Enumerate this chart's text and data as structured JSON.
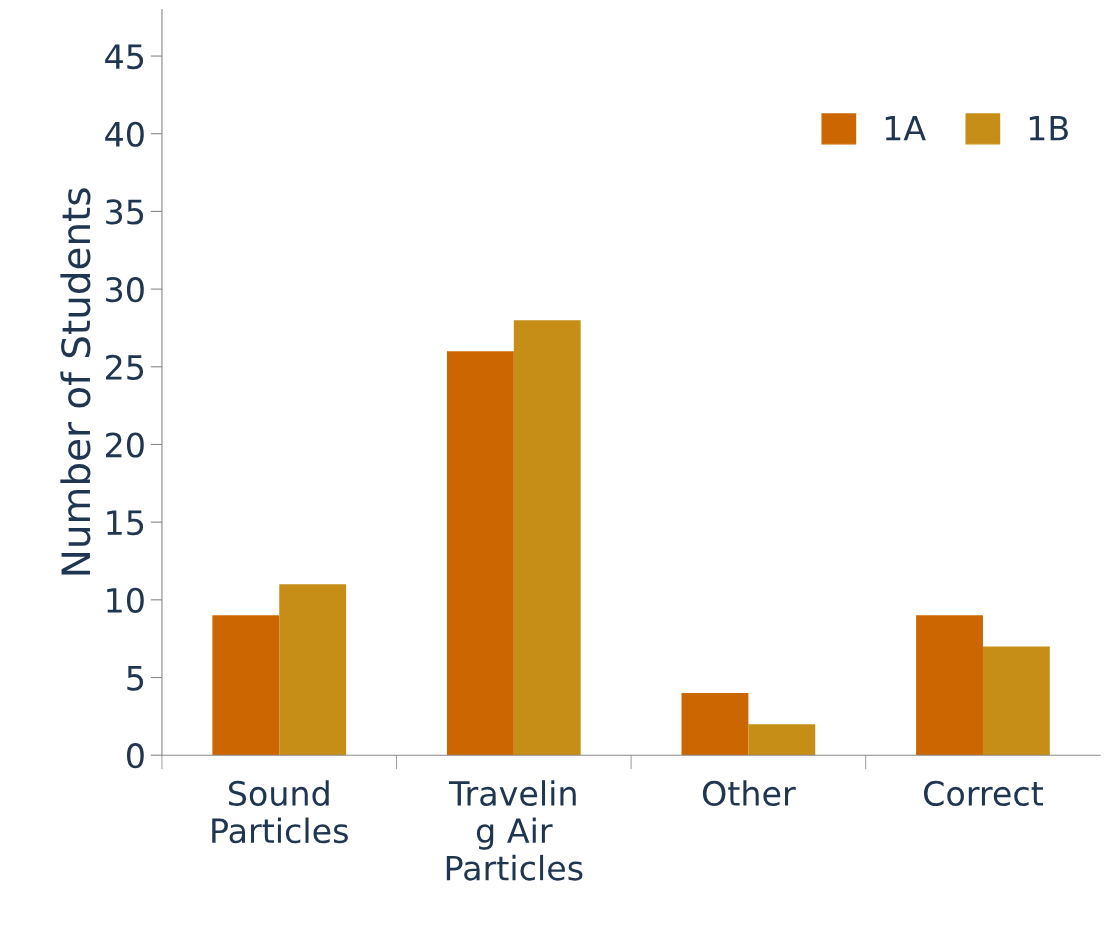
{
  "chart_data": {
    "type": "bar",
    "ylabel": "Number of Students",
    "categories": [
      "Sound\nParticles",
      "Travelin\ng Air\nParticles",
      "Other",
      "Correct"
    ],
    "series": [
      {
        "name": "1A",
        "color": "#cc6600",
        "values": [
          9,
          26,
          4,
          9
        ]
      },
      {
        "name": "1B",
        "color": "#c68e17",
        "values": [
          11,
          28,
          2,
          7
        ]
      }
    ],
    "ylim": [
      0,
      48
    ],
    "yticks": [
      0,
      5,
      10,
      15,
      20,
      25,
      30,
      35,
      40,
      45
    ],
    "grid": false,
    "legend": "top right"
  }
}
